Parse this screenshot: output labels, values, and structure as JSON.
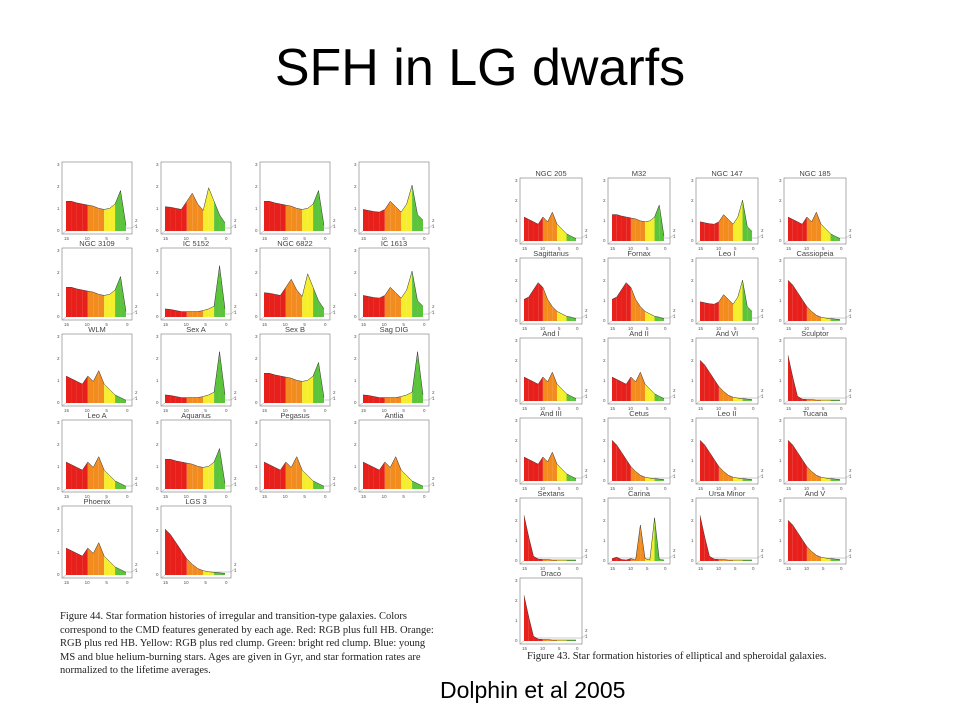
{
  "slide": {
    "title": "SFH in LG dwarfs",
    "credit": "Dolphin et al 2005"
  },
  "figure44": {
    "caption": "Figure 44.    Star formation histories of irregular and transition-type galaxies. Colors correspond to the CMD features generated by each age. Red: RGB plus full HB. Orange: RGB plus red HB. Yellow: RGB plus red clump. Green: bright red clump. Blue: young MS and blue helium-burning stars. Ages are given in Gyr, and star formation rates are normalized to the lifetime averages.",
    "panel_labels": [
      "",
      "",
      "",
      "",
      "NGC 3109",
      "IC 5152",
      "NGC 6822",
      "IC 1613",
      "WLM",
      "Sex A",
      "Sex B",
      "Sag DIG",
      "Leo A",
      "Aquarius",
      "Pegasus",
      "Antlia",
      "Phoenix",
      "LGS 3"
    ]
  },
  "figure43": {
    "caption": "Figure 43.    Star formation histories of elliptical and spheroidal galaxies.",
    "panel_labels": [
      "NGC 205",
      "M32",
      "NGC 147",
      "NGC 185",
      "Sagittarius",
      "Fornax",
      "Leo I",
      "Cassiopeia",
      "And I",
      "And II",
      "And VI",
      "Sculptor",
      "And III",
      "Cetus",
      "Leo II",
      "Tucana",
      "Sextans",
      "Carina",
      "Ursa Minor",
      "And V",
      "Draco"
    ]
  },
  "axis_ticks": {
    "x": [
      "15",
      "10",
      "5",
      "0"
    ],
    "y": [
      "3",
      "2",
      "1",
      "0"
    ],
    "depth": [
      "2",
      "1"
    ]
  },
  "colors": {
    "red": "#e8201c",
    "orange": "#f28c1e",
    "yellow": "#f4ee2c",
    "green": "#5cc43c",
    "blue": "#2233aa"
  }
}
